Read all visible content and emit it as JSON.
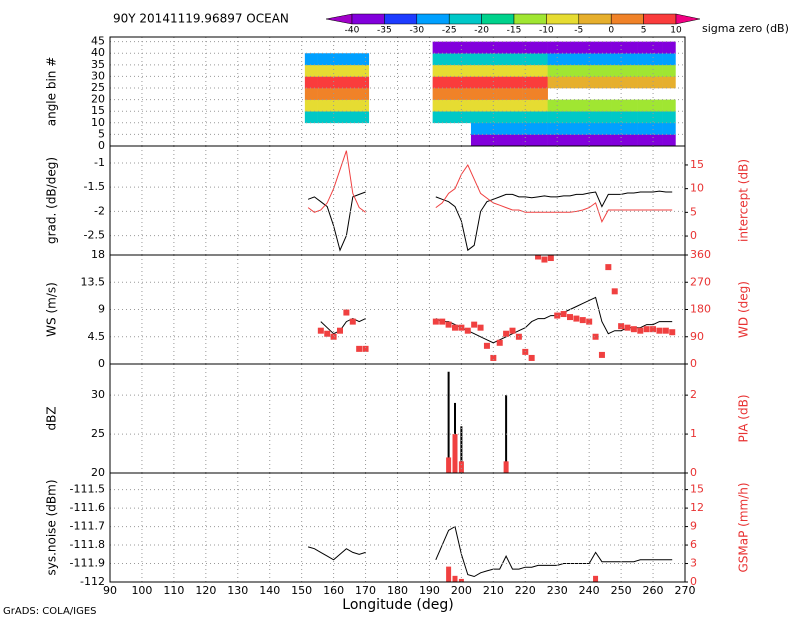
{
  "chart_data": [
    {
      "type": "heatmap",
      "title": "90Y 20141119.96897 OCEAN",
      "colorbar_label": "sigma zero (dB)",
      "ylabel": "angle bin #",
      "x": [
        153,
        157,
        161,
        165,
        169,
        193,
        197,
        201,
        205,
        209,
        213,
        217,
        221,
        225,
        229,
        233,
        237,
        241,
        245,
        249,
        253,
        257,
        261,
        265
      ],
      "y": [
        2.5,
        7.5,
        12.5,
        17.5,
        22.5,
        27.5,
        32.5,
        37.5,
        42.5
      ],
      "values": [
        [
          null,
          null,
          null,
          null,
          null,
          null,
          null,
          null,
          -38,
          -38,
          -38,
          -38,
          -38,
          -38,
          -38,
          -38,
          -38,
          -38,
          -38,
          -38,
          -38,
          -38,
          -38,
          -38
        ],
        [
          null,
          null,
          null,
          null,
          null,
          null,
          null,
          null,
          -30,
          -30,
          -30,
          -30,
          -30,
          -30,
          -30,
          -30,
          -30,
          -30,
          -30,
          -30,
          -30,
          -30,
          -30,
          -30
        ],
        [
          -25,
          -25,
          -25,
          -25,
          -25,
          -25,
          -25,
          -25,
          -22,
          -22,
          -22,
          -22,
          -22,
          -22,
          -22,
          -22,
          -22,
          -22,
          -22,
          -22,
          -22,
          -22,
          -22,
          -22
        ],
        [
          -10,
          -10,
          -10,
          -10,
          -10,
          -10,
          -10,
          -10,
          -10,
          -10,
          -10,
          -10,
          -10,
          -10,
          -12,
          -12,
          -12,
          -12,
          -12,
          -12,
          -12,
          -12,
          -12,
          -12
        ],
        [
          3,
          3,
          3,
          3,
          3,
          3,
          3,
          3,
          3,
          3,
          3,
          3,
          3,
          3,
          null,
          null,
          null,
          null,
          null,
          null,
          null,
          null,
          null,
          null
        ],
        [
          8,
          8,
          8,
          8,
          8,
          8,
          8,
          8,
          8,
          8,
          8,
          8,
          8,
          8,
          -5,
          -5,
          -5,
          -5,
          -5,
          -5,
          -5,
          -5,
          -5,
          -5
        ],
        [
          -8,
          -8,
          -8,
          -8,
          -8,
          -8,
          -8,
          -8,
          -8,
          -8,
          -8,
          -8,
          -8,
          -8,
          -15,
          -15,
          -15,
          -15,
          -15,
          -15,
          -15,
          -15,
          -15,
          -15
        ],
        [
          -28,
          -28,
          -28,
          -28,
          -28,
          -25,
          -25,
          -25,
          -25,
          -25,
          -25,
          -25,
          -25,
          -25,
          -28,
          -28,
          -28,
          -28,
          -28,
          -28,
          -28,
          -28,
          -28,
          -28
        ],
        [
          null,
          null,
          null,
          null,
          null,
          -38,
          -38,
          -38,
          -38,
          -38,
          -38,
          -38,
          -38,
          -38,
          -38,
          -38,
          -38,
          -38,
          -38,
          -38,
          -38,
          -38,
          -38,
          -38
        ]
      ],
      "levels": [
        -40,
        -35,
        -30,
        -25,
        -20,
        -15,
        -10,
        -5,
        0,
        5,
        10
      ],
      "colors": [
        "#a000c8",
        "#8200dc",
        "#1e3cff",
        "#00a0ff",
        "#00c8c8",
        "#00d28c",
        "#a0e632",
        "#e6dc32",
        "#e6af2d",
        "#f08228",
        "#fa3c3c",
        "#f00082"
      ],
      "ylim": [
        0,
        47
      ],
      "yticks": [
        0,
        5,
        10,
        15,
        20,
        25,
        30,
        35,
        40,
        45
      ],
      "grid": true
    },
    {
      "type": "line",
      "ylabel": "grad. (dB/deg)",
      "y2label": "intercept (dB)",
      "x": [
        152,
        154,
        156,
        158,
        160,
        162,
        164,
        166,
        168,
        170,
        180,
        192,
        194,
        196,
        198,
        200,
        202,
        204,
        206,
        208,
        210,
        212,
        214,
        216,
        218,
        220,
        222,
        224,
        226,
        228,
        230,
        232,
        234,
        236,
        238,
        240,
        242,
        244,
        246,
        248,
        250,
        252,
        254,
        256,
        258,
        260,
        262,
        264,
        266
      ],
      "series": [
        {
          "color": "#000000",
          "style": "line",
          "values": [
            -1.75,
            -1.7,
            -1.8,
            -1.9,
            -2.3,
            -2.8,
            -2.5,
            -1.7,
            -1.65,
            -1.6,
            null,
            -1.7,
            -1.75,
            -1.8,
            -1.9,
            -2.2,
            -2.8,
            -2.7,
            -2.0,
            -1.8,
            -1.75,
            -1.7,
            -1.65,
            -1.65,
            -1.7,
            -1.7,
            -1.72,
            -1.7,
            -1.68,
            -1.7,
            -1.7,
            -1.68,
            -1.68,
            -1.65,
            -1.65,
            -1.62,
            -1.6,
            -1.9,
            -1.65,
            -1.65,
            -1.65,
            -1.62,
            -1.62,
            -1.6,
            -1.6,
            -1.6,
            -1.58,
            -1.6,
            -1.6
          ]
        },
        {
          "color": "#f04040",
          "style": "line",
          "axis": "y2",
          "values": [
            6,
            5,
            5.5,
            7,
            10,
            14,
            18,
            9,
            6,
            5,
            null,
            6,
            7,
            9,
            10,
            13,
            15,
            12,
            9,
            8,
            7,
            6.5,
            6,
            5.5,
            5.5,
            5,
            5,
            5,
            5,
            5,
            5,
            5,
            5,
            5.2,
            5.5,
            6,
            7,
            3,
            5.5,
            5.5,
            5.5,
            5.5,
            5.5,
            5.5,
            5.5,
            5.5,
            5.5,
            5.5,
            5.5
          ]
        }
      ],
      "ylim": [
        -2.9,
        -0.65
      ],
      "yticks": [
        -2.5,
        -2,
        -1.5,
        -1
      ],
      "y2lim": [
        -4,
        19
      ],
      "y2ticks": [
        0,
        5,
        10,
        15
      ],
      "grid": true
    },
    {
      "type": "line",
      "ylabel": "WS (m/s)",
      "y2label": "WD (deg)",
      "x": [
        152,
        154,
        156,
        158,
        160,
        162,
        164,
        166,
        168,
        170,
        180,
        192,
        194,
        196,
        198,
        200,
        202,
        204,
        206,
        208,
        210,
        212,
        214,
        216,
        218,
        220,
        222,
        224,
        226,
        228,
        230,
        232,
        234,
        236,
        238,
        240,
        242,
        244,
        246,
        248,
        250,
        252,
        254,
        256,
        258,
        260,
        262,
        264,
        266
      ],
      "series": [
        {
          "color": "#000000",
          "style": "line",
          "values": [
            null,
            null,
            7,
            6,
            5,
            5.5,
            7,
            7.5,
            7,
            7.5,
            null,
            7.5,
            7,
            7,
            6.5,
            6,
            5.5,
            5,
            4.5,
            4,
            3.5,
            4,
            4.5,
            5,
            5.5,
            6,
            7,
            7.5,
            7.5,
            8,
            8,
            8.5,
            9,
            9.5,
            10,
            10.5,
            11,
            7,
            5,
            5.5,
            5.5,
            6,
            6,
            6,
            6.5,
            6.5,
            7,
            7,
            7
          ]
        },
        {
          "color": "#f04040",
          "style": "dot",
          "axis": "y2",
          "values": [
            null,
            null,
            110,
            100,
            90,
            110,
            170,
            140,
            50,
            50,
            null,
            140,
            140,
            130,
            120,
            120,
            110,
            130,
            120,
            60,
            20,
            70,
            100,
            110,
            90,
            40,
            20,
            355,
            345,
            350,
            160,
            165,
            155,
            150,
            145,
            140,
            90,
            30,
            320,
            240,
            125,
            120,
            115,
            110,
            115,
            115,
            110,
            110,
            105
          ]
        }
      ],
      "ylim": [
        0,
        18
      ],
      "yticks": [
        0,
        4.5,
        9,
        13.5,
        18
      ],
      "y2lim": [
        0,
        360
      ],
      "y2ticks": [
        0,
        90,
        180,
        270,
        360
      ],
      "grid": true
    },
    {
      "type": "line",
      "ylabel": "dBZ",
      "y2label": "PIA (dB)",
      "x": [
        152,
        154,
        156,
        158,
        160,
        162,
        164,
        166,
        168,
        170,
        180,
        192,
        194,
        196,
        198,
        200,
        202,
        204,
        206,
        208,
        210,
        212,
        214,
        216,
        218,
        220,
        222,
        224,
        226,
        228,
        230,
        232,
        234,
        236,
        238,
        240,
        242,
        244,
        246,
        248,
        250,
        252,
        254,
        256,
        258,
        260,
        262,
        264,
        266
      ],
      "series": [
        {
          "color": "#000000",
          "style": "needle",
          "values": [
            null,
            null,
            null,
            null,
            null,
            null,
            null,
            null,
            null,
            null,
            null,
            null,
            null,
            33,
            29,
            26,
            null,
            null,
            null,
            null,
            null,
            null,
            30,
            null,
            null,
            null,
            null,
            null,
            null,
            null,
            null,
            null,
            null,
            null,
            null,
            null,
            null,
            null,
            null,
            null,
            null,
            null,
            null,
            null,
            null,
            null,
            null,
            null,
            null
          ]
        },
        {
          "color": "#f04040",
          "style": "needle",
          "axis": "y2",
          "values": [
            null,
            null,
            null,
            null,
            null,
            null,
            null,
            null,
            null,
            null,
            null,
            null,
            null,
            0.4,
            1.0,
            0.3,
            null,
            null,
            null,
            null,
            null,
            null,
            0.3,
            null,
            null,
            null,
            null,
            null,
            null,
            null,
            null,
            null,
            null,
            null,
            null,
            null,
            null,
            null,
            null,
            null,
            null,
            null,
            null,
            null,
            null,
            null,
            null,
            null,
            null
          ]
        }
      ],
      "ylim": [
        20,
        34
      ],
      "yticks": [
        20,
        25,
        30
      ],
      "y2lim": [
        0,
        2.8
      ],
      "y2ticks": [
        0,
        1,
        2
      ],
      "grid": true
    },
    {
      "type": "line",
      "ylabel": "sys.noise (dBm)",
      "y2label": "GSMaP (mm/h)",
      "xlabel": "Longitude (deg)",
      "x": [
        152,
        154,
        156,
        158,
        160,
        162,
        164,
        166,
        168,
        170,
        180,
        192,
        194,
        196,
        198,
        200,
        202,
        204,
        206,
        208,
        210,
        212,
        214,
        216,
        218,
        220,
        222,
        224,
        226,
        228,
        230,
        232,
        234,
        236,
        238,
        240,
        242,
        244,
        246,
        248,
        250,
        252,
        254,
        256,
        258,
        260,
        262,
        264,
        266
      ],
      "series": [
        {
          "color": "#000000",
          "style": "line",
          "values": [
            -111.81,
            -111.82,
            -111.84,
            -111.86,
            -111.88,
            -111.85,
            -111.82,
            -111.84,
            -111.85,
            -111.84,
            null,
            -111.88,
            -111.8,
            -111.72,
            -111.7,
            -111.85,
            -111.96,
            -111.97,
            -111.95,
            -111.94,
            -111.93,
            -111.93,
            -111.86,
            -111.93,
            -111.93,
            -111.92,
            -111.92,
            -111.91,
            -111.91,
            -111.91,
            -111.91,
            -111.9,
            -111.9,
            -111.9,
            -111.9,
            -111.9,
            -111.84,
            -111.89,
            -111.89,
            -111.89,
            -111.89,
            -111.89,
            -111.89,
            -111.88,
            -111.88,
            -111.88,
            -111.88,
            -111.88,
            -111.88
          ]
        },
        {
          "color": "#f04040",
          "style": "needle",
          "axis": "y2",
          "values": [
            null,
            null,
            null,
            null,
            null,
            null,
            null,
            null,
            null,
            null,
            null,
            null,
            null,
            2.5,
            1,
            0.5,
            null,
            null,
            null,
            null,
            null,
            null,
            null,
            null,
            null,
            null,
            null,
            null,
            null,
            null,
            null,
            null,
            null,
            null,
            null,
            null,
            1,
            null,
            null,
            null,
            null,
            null,
            null,
            null,
            null,
            null,
            null,
            null,
            null
          ]
        }
      ],
      "ylim": [
        -112,
        -111.41
      ],
      "yticks": [
        -112,
        -111.9,
        -111.8,
        -111.7,
        -111.6,
        -111.5
      ],
      "y2lim": [
        0,
        17.7
      ],
      "y2ticks": [
        0,
        3,
        6,
        9,
        12,
        15
      ],
      "grid": true,
      "xlim": [
        90,
        270
      ],
      "xticks": [
        90,
        100,
        110,
        120,
        130,
        140,
        150,
        160,
        170,
        180,
        190,
        200,
        210,
        220,
        230,
        240,
        250,
        260,
        270
      ]
    }
  ],
  "footer": "GrADS: COLA/IGES"
}
